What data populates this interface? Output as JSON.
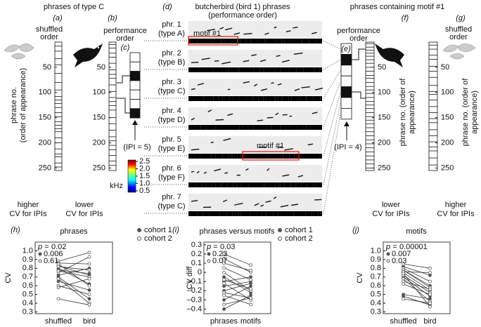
{
  "panels": {
    "left_title": "phrases of type C",
    "right_title": "phrases containing motif #1",
    "a": {
      "label": "(a)",
      "order": [
        "shuffled",
        "order"
      ],
      "ylabel": [
        "phrase no.",
        "(order of appearance)"
      ],
      "ylim": [
        0,
        255
      ],
      "yticks": [
        50,
        100,
        150,
        200,
        250
      ],
      "stripes": [
        8,
        18,
        33,
        45,
        62,
        80,
        95,
        108,
        115,
        122,
        130,
        140,
        148,
        158,
        165,
        172,
        178,
        190,
        200,
        212,
        222,
        228,
        240,
        248
      ],
      "cv": [
        "higher",
        "CV for IPIs"
      ]
    },
    "b": {
      "label": "(b)",
      "order": [
        "performance",
        "order"
      ],
      "ylim": [
        0,
        255
      ],
      "yticks": [
        50,
        100,
        150,
        200,
        250
      ],
      "stripes": [
        5,
        12,
        22,
        30,
        42,
        55,
        64,
        72,
        85,
        98,
        110,
        118,
        126,
        135,
        150,
        162,
        175,
        188,
        196,
        205,
        214,
        225,
        236,
        245
      ],
      "cv": [
        "lower",
        "CV for IPIs"
      ]
    },
    "c": {
      "label": "(c)",
      "ipi": "(IPI = 5)"
    },
    "colorbar": {
      "label": "kHz",
      "lim": [
        0.4,
        2.6
      ],
      "ticks": [
        2.5,
        {
          "value": 2,
          "label": "2.0"
        },
        1.5,
        {
          "value": 1,
          "label": "1.0"
        },
        0.5
      ]
    },
    "d": {
      "label": "(d)",
      "title": [
        "butcherbird (bird 1) phrases",
        "(performance order)"
      ],
      "rows": [
        {
          "phr": "phr. 1",
          "type": "(type A)",
          "type_color": "#111",
          "motif": "motif #1"
        },
        {
          "phr": "phr. 2",
          "type": "(type B)",
          "type_color": "#111"
        },
        {
          "phr": "phr. 3",
          "type": "(type C)",
          "type_color": "#e0201b"
        },
        {
          "phr": "phr. 4",
          "type": "(type D)",
          "type_color": "#111"
        },
        {
          "phr": "phr. 5",
          "type": "(type E)",
          "type_color": "#111",
          "motif": "motif #1"
        },
        {
          "phr": "phr. 6",
          "type": "(type F)",
          "type_color": "#111"
        },
        {
          "phr": "phr. 7",
          "type": "(type C)",
          "type_color": "#e0201b"
        }
      ]
    },
    "e": {
      "label": "(e)",
      "order": [
        "performance",
        "order"
      ],
      "ipi": "(IPI = 4)"
    },
    "f": {
      "label": "(f)",
      "ylabel": [
        "phrase no. (order of",
        "appearance)"
      ],
      "ylim": [
        0,
        255
      ],
      "yticks": [
        50,
        100,
        150,
        200,
        250
      ],
      "stripes": [
        3,
        10,
        16,
        22,
        28,
        35,
        42,
        50,
        58,
        66,
        72,
        80,
        88,
        95,
        102,
        110,
        118,
        125,
        132,
        140,
        148,
        155,
        162,
        170,
        178,
        186,
        194,
        202,
        210,
        218,
        226,
        234,
        242,
        250
      ],
      "cv": [
        "lower",
        "CV for IPIs"
      ]
    },
    "g": {
      "label": "(g)",
      "order": [
        "shuffled",
        "order"
      ],
      "ylabel": [
        "phrase no. (order of",
        "appearance)"
      ],
      "ylim": [
        0,
        255
      ],
      "yticks": [
        50,
        100,
        150,
        200,
        250
      ],
      "stripes": [
        6,
        14,
        26,
        34,
        48,
        58,
        70,
        86,
        98,
        104,
        115,
        128,
        140,
        152,
        160,
        174,
        186,
        198,
        208,
        216,
        230,
        244
      ],
      "cv": [
        "higher",
        "CV for IPIs"
      ]
    }
  },
  "chart_data": [
    {
      "type": "paired",
      "label": "(h)",
      "title": "phrases",
      "ylabel": "CV",
      "categories": [
        "shuffled",
        "bird"
      ],
      "ylim": [
        0.28,
        1.1
      ],
      "yticks": [
        0.3,
        0.4,
        0.5,
        0.6,
        0.7,
        0.8,
        0.9,
        {
          "value": 1,
          "label": "1.0"
        }
      ],
      "stats": {
        "prefix": "p =",
        "values": [
          0.02,
          0.006,
          0.61
        ]
      },
      "legend": true,
      "series": [
        {
          "name": "cohort 1",
          "color": "#555555",
          "filled": true,
          "values": [
            [
              0.78,
              0.74
            ],
            [
              0.72,
              0.8
            ],
            [
              0.8,
              0.62
            ],
            [
              0.65,
              0.55
            ],
            [
              0.7,
              0.45
            ],
            [
              0.83,
              0.72
            ]
          ]
        },
        {
          "name": "cohort 2",
          "color": "#555555",
          "filled": false,
          "values": [
            [
              0.88,
              0.98
            ],
            [
              0.86,
              0.85
            ],
            [
              0.75,
              0.93
            ],
            [
              0.82,
              0.78
            ],
            [
              0.77,
              0.7
            ],
            [
              0.6,
              0.5
            ],
            [
              0.58,
              0.68
            ],
            [
              0.68,
              0.4
            ],
            [
              0.45,
              0.38
            ],
            [
              0.85,
              0.6
            ]
          ]
        }
      ]
    },
    {
      "type": "paired",
      "label": "(i)",
      "title": "phrases versus motifs",
      "ylabel": "CV diff",
      "categories": [
        "phrases",
        "motifs"
      ],
      "ylim": [
        -0.45,
        0.33
      ],
      "yticks": [
        0.3,
        0.2,
        0.1,
        0,
        {
          "value": -0.1,
          "label": "–0.1"
        },
        {
          "value": -0.2,
          "label": "–0.2"
        },
        {
          "value": -0.3,
          "label": "–0.3"
        },
        {
          "value": -0.4,
          "label": "–0.4"
        }
      ],
      "stats": {
        "prefix": "p =",
        "values": [
          0.03,
          0.23,
          0.07
        ]
      },
      "legend": true,
      "series": [
        {
          "name": "cohort 1",
          "color": "#555555",
          "filled": true,
          "values": [
            [
              -0.1,
              -0.05
            ],
            [
              -0.2,
              -0.12
            ],
            [
              -0.3,
              -0.15
            ],
            [
              -0.4,
              -0.25
            ],
            [
              -0.05,
              -0.22
            ],
            [
              -0.15,
              -0.1
            ]
          ]
        },
        {
          "name": "cohort 2",
          "color": "#555555",
          "filled": false,
          "values": [
            [
              0.2,
              0.08
            ],
            [
              0.15,
              0
            ],
            [
              0.1,
              0.02
            ],
            [
              0.05,
              -0.08
            ],
            [
              0,
              -0.2
            ],
            [
              -0.08,
              -0.18
            ],
            [
              -0.12,
              -0.3
            ],
            [
              -0.22,
              -0.28
            ],
            [
              -0.25,
              -0.35
            ],
            [
              -0.35,
              -0.28
            ]
          ]
        }
      ]
    },
    {
      "type": "paired",
      "label": "(j)",
      "title": "motifs",
      "ylabel": "CV",
      "categories": [
        "shuffled",
        "bird"
      ],
      "ylim": [
        0.28,
        1.1
      ],
      "yticks": [
        0.3,
        0.4,
        0.5,
        0.6,
        0.7,
        0.8,
        0.9,
        {
          "value": 1,
          "label": "1.0"
        }
      ],
      "stats": {
        "prefix": "p =",
        "values": [
          1e-05,
          0.007,
          0.03
        ]
      },
      "legend": false,
      "series": [
        {
          "name": "cohort 1",
          "color": "#555555",
          "filled": true,
          "values": [
            [
              0.82,
              0.72
            ],
            [
              0.78,
              0.6
            ],
            [
              0.75,
              0.55
            ],
            [
              0.7,
              0.48
            ],
            [
              0.5,
              0.45
            ],
            [
              0.48,
              0.38
            ]
          ]
        },
        {
          "name": "cohort 2",
          "color": "#555555",
          "filled": false,
          "values": [
            [
              0.85,
              0.8
            ],
            [
              0.8,
              0.65
            ],
            [
              0.78,
              0.58
            ],
            [
              0.76,
              0.75
            ],
            [
              0.72,
              0.52
            ],
            [
              0.68,
              0.42
            ],
            [
              0.65,
              0.56
            ],
            [
              0.62,
              0.5
            ],
            [
              0.74,
              0.36
            ],
            [
              0.45,
              0.4
            ]
          ]
        }
      ]
    }
  ]
}
